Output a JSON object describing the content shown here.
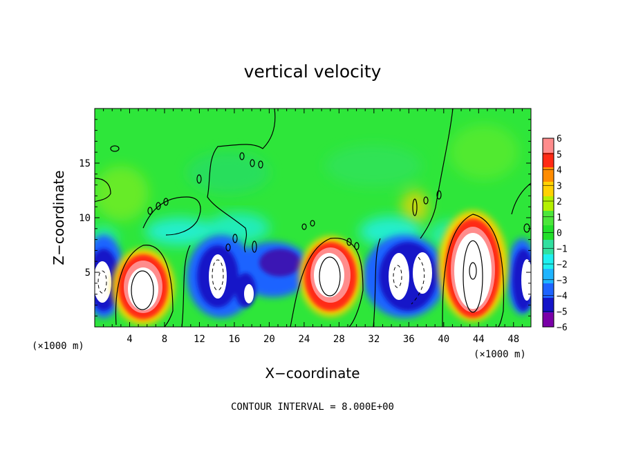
{
  "chart_data": {
    "type": "heatmap",
    "title": "vertical velocity",
    "xlabel": "X−coordinate",
    "ylabel": "Z−coordinate",
    "x_unit_label": "(×1000 m)",
    "y_unit_label": "(×1000 m)",
    "xlim": [
      0,
      50
    ],
    "ylim": [
      0,
      20
    ],
    "x_ticks": [
      4,
      8,
      12,
      16,
      20,
      24,
      28,
      32,
      36,
      40,
      44,
      48
    ],
    "y_ticks": [
      5,
      10,
      15
    ],
    "colorbar": {
      "ticks": [
        6,
        5,
        4,
        3,
        2,
        1,
        0,
        -1,
        -2,
        -3,
        -4,
        -5,
        -6
      ],
      "range": [
        -6,
        6
      ],
      "colors": [
        "#7a00a8",
        "#1414c8",
        "#1e64ff",
        "#1eb4ff",
        "#1ef0f0",
        "#30e0a0",
        "#22e02a",
        "#4ce63a",
        "#b4f000",
        "#ffd200",
        "#ff8c00",
        "#ff2a14",
        "#ff8c8c"
      ]
    },
    "annotation": "CONTOUR INTERVAL = 8.000E+00",
    "cells": [
      {
        "x": 3,
        "z": 3.5,
        "w": -8
      },
      {
        "x": 6,
        "z": 3.5,
        "w": 10
      },
      {
        "x": 14,
        "z": 3.5,
        "w": -8
      },
      {
        "x": 17.5,
        "z": 2.5,
        "w": -6
      },
      {
        "x": 26.5,
        "z": 3.5,
        "w": 9
      },
      {
        "x": 36,
        "z": 4,
        "w": -8
      },
      {
        "x": 43.5,
        "z": 5,
        "w": 12
      },
      {
        "x": 49,
        "z": 4,
        "w": -8
      }
    ]
  }
}
